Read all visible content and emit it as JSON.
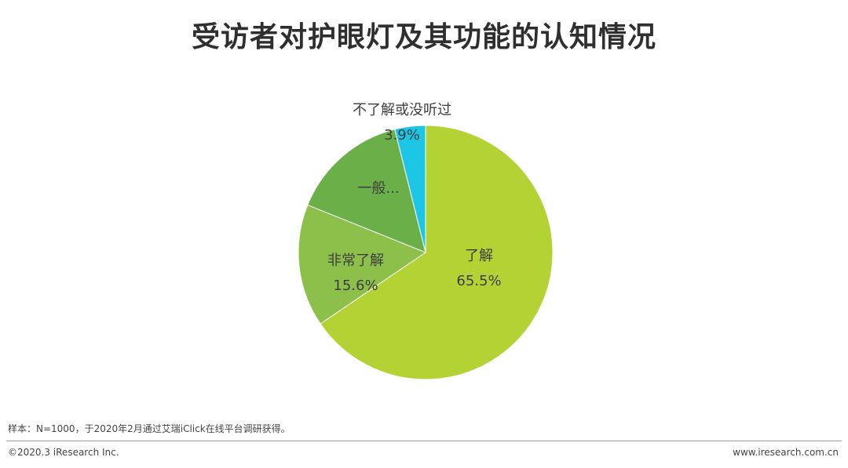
{
  "title": "受访者对护眼灯及其功能的认知情况",
  "chart_data": {
    "type": "pie",
    "start_angle_deg": 0,
    "direction": "clockwise",
    "slices": [
      {
        "label": "了解",
        "value_label": "65.5%",
        "value": 65.5,
        "color": "#b3d233"
      },
      {
        "label": "非常了解",
        "value_label": "15.6%",
        "value": 15.6,
        "color": "#8cc04a"
      },
      {
        "label": "一般...",
        "value_label": "",
        "value": 15.0,
        "color": "#6aaf47"
      },
      {
        "label": "不了解或没听过",
        "value_label": "3.9%",
        "value": 3.9,
        "color": "#1ec6e6"
      }
    ]
  },
  "footer": {
    "note": "样本：N=1000，于2020年2月通过艾瑞iClick在线平台调研获得。",
    "copyright": "©2020.3 iResearch Inc.",
    "website": "www.iresearch.com.cn"
  }
}
